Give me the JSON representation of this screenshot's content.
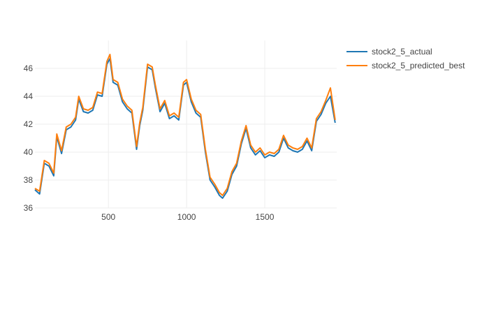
{
  "chart_data": {
    "type": "line",
    "title": "",
    "xlabel": "",
    "ylabel": "",
    "xlim": [
      30,
      1960
    ],
    "ylim": [
      36,
      48
    ],
    "x_ticks": [
      500,
      1000,
      1500
    ],
    "y_ticks": [
      36,
      38,
      40,
      42,
      44,
      46
    ],
    "grid": true,
    "legend_position": "top-right",
    "x": [
      30,
      60,
      90,
      120,
      150,
      170,
      200,
      230,
      260,
      290,
      310,
      340,
      370,
      400,
      430,
      460,
      490,
      510,
      530,
      560,
      590,
      620,
      650,
      680,
      700,
      720,
      750,
      780,
      800,
      830,
      860,
      890,
      920,
      950,
      980,
      1000,
      1030,
      1060,
      1090,
      1120,
      1150,
      1180,
      1210,
      1230,
      1260,
      1290,
      1320,
      1350,
      1380,
      1410,
      1440,
      1470,
      1500,
      1530,
      1560,
      1590,
      1620,
      1650,
      1680,
      1710,
      1740,
      1770,
      1800,
      1830,
      1860,
      1890,
      1920,
      1950
    ],
    "series": [
      {
        "name": "stock2_5_actual",
        "color": "#1f77b4",
        "values": [
          37.3,
          37.0,
          39.2,
          39.0,
          38.3,
          41.1,
          39.9,
          41.6,
          41.8,
          42.3,
          43.8,
          42.9,
          42.8,
          43.0,
          44.1,
          44.0,
          46.3,
          46.7,
          45.0,
          44.8,
          43.6,
          43.1,
          42.8,
          40.2,
          41.9,
          43.0,
          46.1,
          45.9,
          44.6,
          42.9,
          43.5,
          42.4,
          42.6,
          42.3,
          44.8,
          45.0,
          43.6,
          42.8,
          42.5,
          40.0,
          38.0,
          37.5,
          36.9,
          36.7,
          37.2,
          38.4,
          39.0,
          40.6,
          41.7,
          40.3,
          39.8,
          40.1,
          39.6,
          39.8,
          39.7,
          40.0,
          41.0,
          40.3,
          40.1,
          40.0,
          40.2,
          40.8,
          40.1,
          42.2,
          42.7,
          43.5,
          44.0,
          42.1
        ]
      },
      {
        "name": "stock2_5_predicted_best",
        "color": "#ff7f0e",
        "values": [
          37.4,
          37.2,
          39.4,
          39.2,
          38.5,
          41.3,
          40.1,
          41.8,
          42.0,
          42.5,
          44.0,
          43.1,
          43.0,
          43.2,
          44.3,
          44.2,
          46.5,
          47.0,
          45.2,
          45.0,
          43.8,
          43.3,
          43.0,
          40.4,
          42.1,
          43.2,
          46.3,
          46.1,
          44.8,
          43.1,
          43.7,
          42.6,
          42.8,
          42.5,
          45.0,
          45.2,
          43.8,
          43.0,
          42.7,
          40.2,
          38.2,
          37.7,
          37.1,
          36.9,
          37.4,
          38.6,
          39.2,
          40.8,
          41.9,
          40.5,
          40.0,
          40.3,
          39.8,
          40.0,
          39.9,
          40.2,
          41.2,
          40.5,
          40.3,
          40.2,
          40.4,
          41.0,
          40.3,
          42.4,
          42.9,
          43.7,
          44.6,
          42.3
        ]
      }
    ]
  }
}
